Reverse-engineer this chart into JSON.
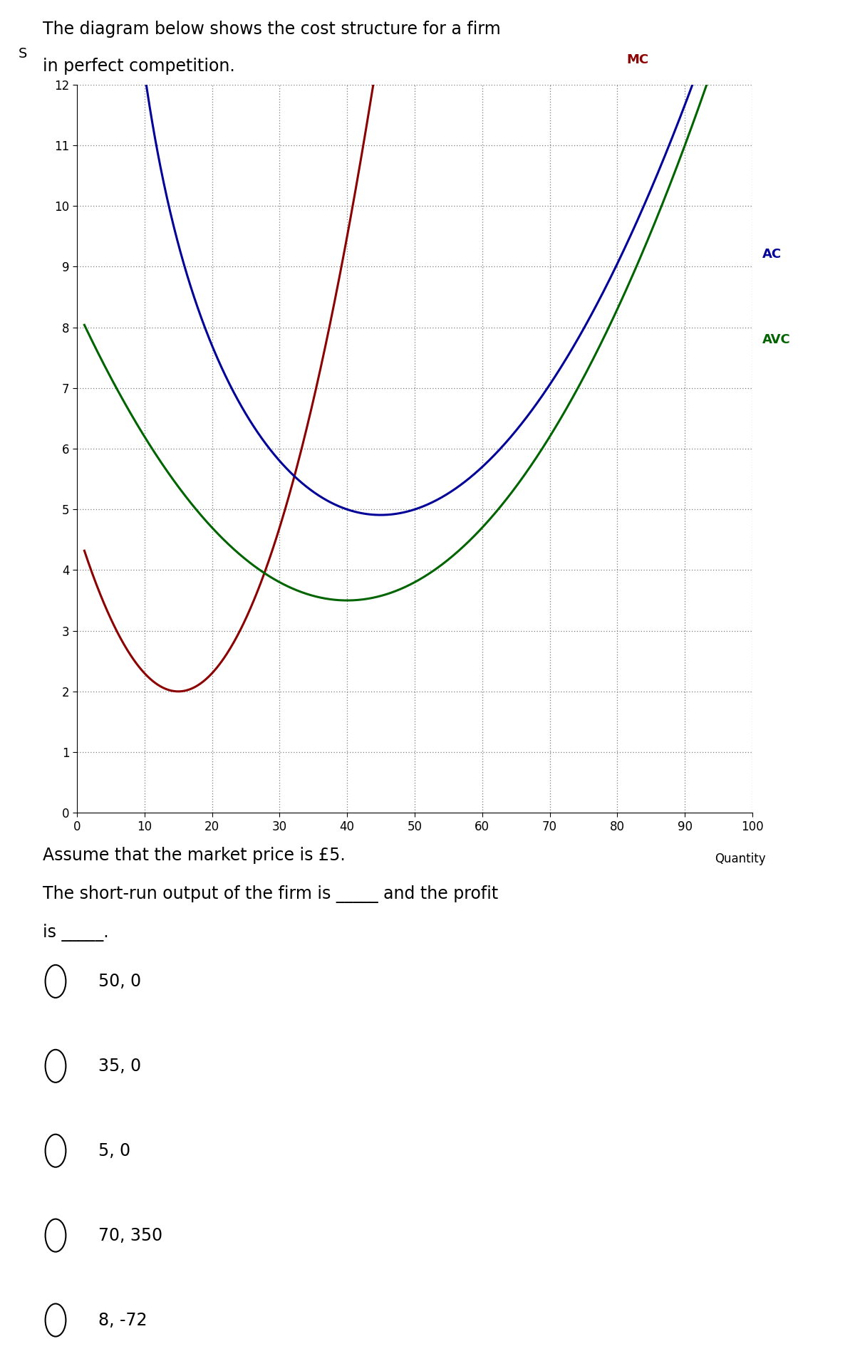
{
  "title_line1": "The diagram below shows the cost structure for a firm",
  "title_line2": "in perfect competition.",
  "ylabel": "S",
  "xlabel": "Quantity",
  "xlim": [
    0,
    100
  ],
  "ylim": [
    0,
    12
  ],
  "xticks": [
    0,
    10,
    20,
    30,
    40,
    50,
    60,
    70,
    80,
    90,
    100
  ],
  "yticks": [
    0,
    1,
    2,
    3,
    4,
    5,
    6,
    7,
    8,
    9,
    10,
    11,
    12
  ],
  "mc_color": "#8B0000",
  "ac_color": "#000099",
  "avc_color": "#006400",
  "question_line1": "Assume that the market price is £5.",
  "question_line2": "The short-run output of the firm is _____ and the profit",
  "question_line3": "is _____.",
  "options": [
    "50, 0",
    "35, 0",
    "5, 0",
    "70, 350",
    "8, -72"
  ],
  "bg_color": "#ffffff",
  "grid_color": "#7a7a7a",
  "fig_width": 12.0,
  "fig_height": 19.18,
  "mc_a": 0.012,
  "mc_b": 15,
  "mc_c": 2.0,
  "avc_a": 0.003,
  "avc_b": 40,
  "avc_c": 3.5,
  "fc": 60
}
